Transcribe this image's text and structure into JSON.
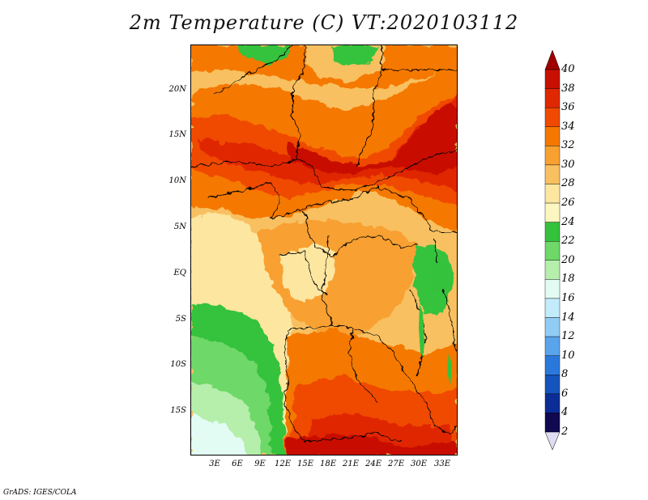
{
  "title": "2m Temperature (C) VT:2020103112",
  "footer": "GrADS: IGES/COLA",
  "y_axis_labels": [
    "20N",
    "15N",
    "10N",
    "5N",
    "EQ",
    "5S",
    "10S",
    "15S"
  ],
  "x_axis_labels": [
    "3E",
    "6E",
    "9E",
    "12E",
    "15E",
    "18E",
    "21E",
    "24E",
    "27E",
    "30E",
    "33E"
  ],
  "legend": {
    "labels": [
      "40",
      "38",
      "36",
      "34",
      "32",
      "30",
      "28",
      "26",
      "24",
      "22",
      "20",
      "18",
      "16",
      "14",
      "12",
      "10",
      "8",
      "6",
      "4",
      "2"
    ],
    "colors": [
      "#a00000",
      "#c81000",
      "#e02800",
      "#f04a00",
      "#f57800",
      "#f8a030",
      "#f8c060",
      "#fde6a0",
      "#fcf6c0",
      "#34c23c",
      "#6ed868",
      "#b6eeac",
      "#e2fcf4",
      "#c2ecfc",
      "#90ccf4",
      "#5aa4ec",
      "#2a78dc",
      "#1454bc",
      "#0c2c96",
      "#100850"
    ],
    "under_color": "#e0dcf4"
  },
  "colors": {
    "ocean_far": "#e2fcf4",
    "ocean_light": "#b6eeac",
    "ocean_mid": "#6ed868",
    "ocean_near": "#34c23c",
    "coast": "#fde6a0",
    "land_base": "#f8c060",
    "land_warm": "#f8a030",
    "hot": "#f57800",
    "hotter": "#f04a00",
    "hottest": "#e02800",
    "extreme": "#c81000",
    "highland": "#34c23c",
    "border": "#000000"
  }
}
